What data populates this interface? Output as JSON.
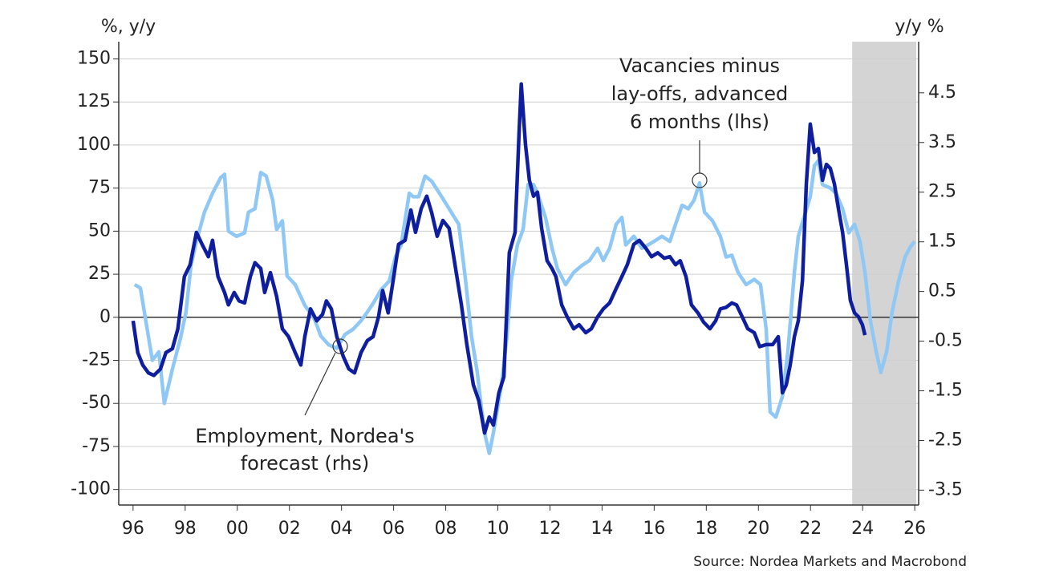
{
  "chart_data": {
    "type": "line",
    "y_axis_label": "%, y/y",
    "y2_axis_label": "y/y %",
    "source": "Source: Nordea Markets and Macrobond",
    "annotations": [
      {
        "lines": [
          "Vacancies minus",
          "lay-offs, advanced",
          "6 months (lhs)"
        ]
      },
      {
        "lines": [
          "Employment, Nordea's",
          "forecast (rhs)"
        ]
      }
    ],
    "xlim": [
      1995.45,
      2026.15
    ],
    "xticks": [
      {
        "value": 1996,
        "label": "96"
      },
      {
        "value": 1998,
        "label": "98"
      },
      {
        "value": 2000,
        "label": "00"
      },
      {
        "value": 2002,
        "label": "02"
      },
      {
        "value": 2004,
        "label": "04"
      },
      {
        "value": 2006,
        "label": "06"
      },
      {
        "value": 2008,
        "label": "08"
      },
      {
        "value": 2010,
        "label": "10"
      },
      {
        "value": 2012,
        "label": "12"
      },
      {
        "value": 2014,
        "label": "14"
      },
      {
        "value": 2016,
        "label": "16"
      },
      {
        "value": 2018,
        "label": "18"
      },
      {
        "value": 2020,
        "label": "20"
      },
      {
        "value": 2022,
        "label": "22"
      },
      {
        "value": 2024,
        "label": "24"
      },
      {
        "value": 2026,
        "label": "26"
      }
    ],
    "ylim": [
      -109,
      160
    ],
    "yticks": [
      150,
      125,
      100,
      75,
      50,
      25,
      0,
      -25,
      -50,
      -75,
      -100
    ],
    "y2lim": [
      -3.8,
      5.53
    ],
    "y2ticks": [
      4.5,
      3.5,
      2.5,
      1.5,
      0.5,
      -0.5,
      -1.5,
      -2.5,
      -3.5
    ],
    "grid": true,
    "shaded_x": [
      2023.6,
      2026.06
    ],
    "shaded_color": "#d4d4d4",
    "series": [
      {
        "color": "#90c8f5",
        "x": [
          1996.06,
          1996.28,
          1996.74,
          1996.99,
          1997.2,
          1997.51,
          1997.82,
          1998.03,
          1998.22,
          1998.43,
          1998.74,
          1999.05,
          1999.36,
          1999.51,
          1999.66,
          1999.97,
          2000.28,
          2000.43,
          2000.68,
          2000.9,
          2001.11,
          2001.36,
          2001.51,
          2001.73,
          2001.91,
          2002.22,
          2002.59,
          2002.96,
          2003.21,
          2003.51,
          2003.82,
          2004.13,
          2004.44,
          2004.75,
          2004.99,
          2005.21,
          2005.52,
          2005.83,
          2006.07,
          2006.29,
          2006.6,
          2006.75,
          2006.96,
          2007.21,
          2007.46,
          2007.76,
          2008.13,
          2008.5,
          2008.75,
          2008.99,
          2009.21,
          2009.37,
          2009.52,
          2009.67,
          2009.83,
          2010.14,
          2010.35,
          2010.51,
          2010.75,
          2010.97,
          2011.16,
          2011.37,
          2011.52,
          2011.83,
          2012.08,
          2012.29,
          2012.6,
          2012.91,
          2013.22,
          2013.52,
          2013.83,
          2014.05,
          2014.29,
          2014.54,
          2014.76,
          2014.91,
          2015.22,
          2015.53,
          2015.77,
          2015.99,
          2016.3,
          2016.6,
          2016.82,
          2017.07,
          2017.31,
          2017.53,
          2017.74,
          2017.93,
          2018.24,
          2018.54,
          2018.76,
          2018.98,
          2019.22,
          2019.53,
          2019.84,
          2020.08,
          2020.3,
          2020.45,
          2020.67,
          2020.92,
          2021.13,
          2021.38,
          2021.53,
          2021.75,
          2021.99,
          2022.15,
          2022.3,
          2022.46,
          2022.76,
          2022.98,
          2023.23,
          2023.47,
          2023.69,
          2023.9,
          2024.09,
          2024.3,
          2024.52,
          2024.7,
          2024.92,
          2025.13,
          2025.38,
          2025.63,
          2025.84,
          2026.0
        ],
        "values": [
          19,
          17,
          -25,
          -20,
          -50,
          -30,
          -12,
          3,
          30,
          44,
          61,
          72,
          81,
          83,
          50,
          47,
          49,
          61,
          63,
          84,
          82,
          68,
          51,
          56,
          24,
          19,
          7,
          -1,
          -11,
          -16,
          -18,
          -10,
          -7,
          -2,
          3,
          8,
          16,
          21,
          35,
          42,
          72,
          70,
          70,
          82,
          79,
          72,
          63,
          54,
          23,
          -11,
          -32,
          -53,
          -69,
          -79,
          -67,
          -39,
          -11,
          21,
          42,
          51,
          77,
          77,
          72,
          58,
          40,
          28,
          19,
          26,
          30,
          33,
          40,
          33,
          40,
          54,
          58,
          42,
          47,
          40,
          42,
          44,
          47,
          44,
          54,
          65,
          63,
          68,
          78,
          61,
          56,
          47,
          35,
          36,
          26,
          19,
          22,
          19,
          -7,
          -55,
          -58,
          -46,
          -20,
          26,
          47,
          58,
          70,
          88,
          91,
          77,
          75,
          72,
          63,
          49,
          54,
          44,
          26,
          -2,
          -20,
          -32,
          -20,
          3,
          21,
          35,
          41,
          44
        ]
      },
      {
        "color": "#0f1e9e",
        "axis": "y2",
        "x": [
          1996.0,
          1996.18,
          1996.37,
          1996.59,
          1996.8,
          1997.05,
          1997.26,
          1997.51,
          1997.72,
          1997.97,
          1998.19,
          1998.43,
          1998.65,
          1998.89,
          1999.05,
          1999.26,
          1999.51,
          1999.66,
          1999.88,
          2000.07,
          2000.28,
          2000.5,
          2000.68,
          2000.9,
          2001.05,
          2001.27,
          2001.51,
          2001.73,
          2001.97,
          2002.22,
          2002.44,
          2002.59,
          2002.81,
          2003.05,
          2003.27,
          2003.42,
          2003.61,
          2003.82,
          2004.07,
          2004.28,
          2004.5,
          2004.75,
          2004.99,
          2005.21,
          2005.42,
          2005.58,
          2005.79,
          2005.98,
          2006.19,
          2006.44,
          2006.66,
          2006.84,
          2007.06,
          2007.27,
          2007.46,
          2007.67,
          2007.89,
          2008.13,
          2008.38,
          2008.6,
          2008.81,
          2009.06,
          2009.27,
          2009.49,
          2009.67,
          2009.83,
          2010.04,
          2010.23,
          2010.44,
          2010.66,
          2010.81,
          2010.9,
          2011.06,
          2011.21,
          2011.37,
          2011.52,
          2011.68,
          2011.89,
          2012.08,
          2012.23,
          2012.45,
          2012.66,
          2012.91,
          2013.12,
          2013.37,
          2013.59,
          2013.83,
          2014.05,
          2014.29,
          2014.54,
          2014.76,
          2014.97,
          2015.22,
          2015.43,
          2015.68,
          2015.9,
          2016.14,
          2016.39,
          2016.6,
          2016.82,
          2017.0,
          2017.22,
          2017.43,
          2017.68,
          2017.9,
          2018.14,
          2018.36,
          2018.54,
          2018.76,
          2018.98,
          2019.16,
          2019.38,
          2019.59,
          2019.84,
          2020.05,
          2020.3,
          2020.55,
          2020.76,
          2020.92,
          2021.07,
          2021.22,
          2021.38,
          2021.53,
          2021.69,
          2021.84,
          2021.99,
          2022.15,
          2022.3,
          2022.46,
          2022.61,
          2022.76,
          2022.92,
          2023.07,
          2023.23,
          2023.38,
          2023.53,
          2023.69,
          2023.84,
          2023.99,
          2024.09
        ],
        "values": [
          -0.09,
          -0.73,
          -0.98,
          -1.14,
          -1.19,
          -1.06,
          -0.73,
          -0.65,
          -0.25,
          0.8,
          1.04,
          1.69,
          1.45,
          1.2,
          1.53,
          0.8,
          0.48,
          0.23,
          0.48,
          0.31,
          0.27,
          0.8,
          1.08,
          0.96,
          0.48,
          0.88,
          0.4,
          -0.25,
          -0.41,
          -0.73,
          -0.98,
          -0.41,
          0.15,
          -0.09,
          0.04,
          0.31,
          0.15,
          -0.41,
          -0.81,
          -1.06,
          -1.14,
          -0.73,
          -0.49,
          -0.41,
          -0.01,
          0.52,
          0.07,
          0.72,
          1.45,
          1.53,
          2.14,
          1.69,
          2.17,
          2.42,
          2.09,
          1.61,
          1.93,
          1.77,
          0.96,
          0.23,
          -0.57,
          -1.38,
          -1.7,
          -2.35,
          -2.03,
          -2.19,
          -1.54,
          -1.22,
          1.28,
          1.69,
          3.63,
          4.68,
          3.47,
          2.74,
          2.42,
          2.5,
          1.77,
          1.12,
          0.96,
          0.8,
          0.23,
          -0.01,
          -0.25,
          -0.17,
          -0.33,
          -0.25,
          -0.01,
          0.15,
          0.27,
          0.56,
          0.8,
          1.04,
          1.45,
          1.53,
          1.37,
          1.2,
          1.28,
          1.17,
          1.2,
          1.04,
          1.12,
          0.8,
          0.23,
          0.07,
          -0.12,
          -0.25,
          -0.09,
          0.15,
          0.18,
          0.27,
          0.23,
          -0.01,
          -0.25,
          -0.33,
          -0.61,
          -0.57,
          -0.57,
          -0.41,
          -1.54,
          -1.38,
          -0.98,
          -0.41,
          -0.09,
          0.72,
          2.66,
          3.87,
          3.3,
          3.38,
          2.74,
          3.06,
          2.98,
          2.66,
          2.17,
          1.69,
          1.04,
          0.32,
          0.07,
          -0.01,
          -0.17,
          -0.38
        ]
      }
    ]
  }
}
